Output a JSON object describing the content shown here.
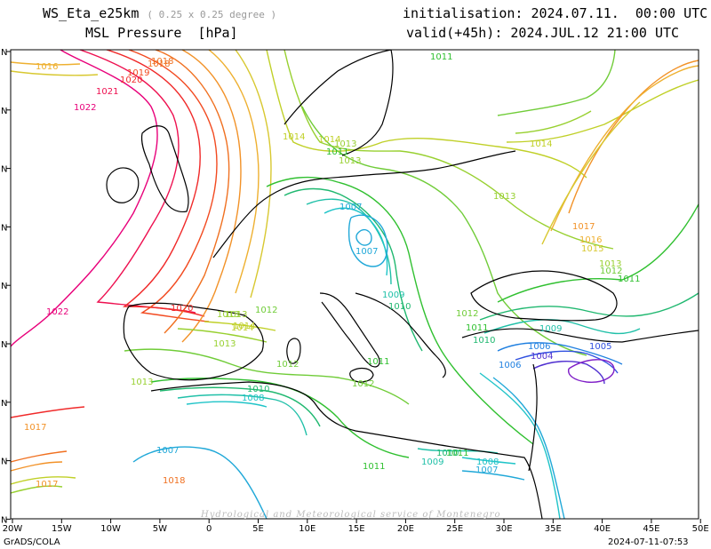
{
  "header": {
    "model": "WS_Eta_e25km",
    "resolution": "( 0.25 x 0.25 degree )",
    "field": "MSL Pressure",
    "unit": "[hPa]",
    "init": "initialisation: 2024.07.11.  00:00 UTC",
    "valid": "valid(+45h): 2024.JUL.12 21:00 UTC"
  },
  "footer": {
    "left": "GrADS/COLA",
    "right": "2024-07-11-07:53",
    "watermark": "Hydrological and Meteorological service of Montenegro"
  },
  "axes": {
    "lon_labels": [
      "20W",
      "15W",
      "10W",
      "5W",
      "0",
      "5E",
      "10E",
      "15E",
      "20E",
      "25E",
      "30E",
      "35E",
      "40E",
      "45E",
      "50E"
    ],
    "lat_labels": [
      "N",
      "N",
      "N",
      "N",
      "N",
      "N",
      "N",
      "N",
      "N"
    ]
  },
  "colors": {
    "1022": "#e8007a",
    "1021": "#ee1050",
    "1020": "#f02a2a",
    "1019": "#f24a20",
    "1018": "#f07020",
    "1017": "#f29228",
    "1016": "#eeb030",
    "1015": "#d8c830",
    "1014": "#c0d028",
    "1013": "#98d030",
    "1012": "#70cc38",
    "1011": "#30c030",
    "1010": "#20b870",
    "1009": "#20c0a8",
    "1008": "#20c4c8",
    "1007": "#20a8d8",
    "1006": "#2080e0",
    "1005": "#3050e0",
    "1004": "#5030d0",
    "1003": "#8020c8"
  },
  "contour_labels": [
    {
      "text": "1016",
      "v": 1016
    },
    {
      "text": "1018",
      "v": 1018
    },
    {
      "text": "1019",
      "v": 1019
    },
    {
      "text": "1020",
      "v": 1020
    },
    {
      "text": "1021",
      "v": 1021
    },
    {
      "text": "1022",
      "v": 1022
    },
    {
      "text": "1022",
      "v": 1022
    },
    {
      "text": "1020",
      "v": 1020
    },
    {
      "text": "1018",
      "v": 1018
    },
    {
      "text": "1017",
      "v": 1017
    },
    {
      "text": "1014",
      "v": 1014
    },
    {
      "text": "1013",
      "v": 1013
    },
    {
      "text": "1011",
      "v": 1011
    },
    {
      "text": "1013",
      "v": 1013
    },
    {
      "text": "1014",
      "v": 1014
    },
    {
      "text": "1007",
      "v": 1007
    },
    {
      "text": "1007",
      "v": 1007
    },
    {
      "text": "1009",
      "v": 1009
    },
    {
      "text": "1010",
      "v": 1010
    },
    {
      "text": "1012",
      "v": 1012
    },
    {
      "text": "1013",
      "v": 1013
    },
    {
      "text": "1014",
      "v": 1014
    },
    {
      "text": "1013",
      "v": 1013
    },
    {
      "text": "1012",
      "v": 1012
    },
    {
      "text": "1011",
      "v": 1011
    },
    {
      "text": "1010",
      "v": 1010
    },
    {
      "text": "1008",
      "v": 1008
    },
    {
      "text": "1007",
      "v": 1007
    },
    {
      "text": "1011",
      "v": 1011
    },
    {
      "text": "1012",
      "v": 1012
    },
    {
      "text": "1011",
      "v": 1011
    },
    {
      "text": "1013",
      "v": 1013
    },
    {
      "text": "1014",
      "v": 1014
    },
    {
      "text": "1013",
      "v": 1013
    },
    {
      "text": "1012",
      "v": 1012
    },
    {
      "text": "1017",
      "v": 1017
    },
    {
      "text": "1016",
      "v": 1016
    },
    {
      "text": "1015",
      "v": 1015
    },
    {
      "text": "1013",
      "v": 1013
    },
    {
      "text": "1012",
      "v": 1012
    },
    {
      "text": "1011",
      "v": 1011
    },
    {
      "text": "1009",
      "v": 1009
    },
    {
      "text": "1006",
      "v": 1006
    },
    {
      "text": "1005",
      "v": 1005
    },
    {
      "text": "1004",
      "v": 1004
    },
    {
      "text": "1006",
      "v": 1006
    },
    {
      "text": "1010",
      "v": 1010
    },
    {
      "text": "1009",
      "v": 1009
    },
    {
      "text": "1008",
      "v": 1008
    },
    {
      "text": "1007",
      "v": 1007
    },
    {
      "text": "1011",
      "v": 1011
    },
    {
      "text": "1010",
      "v": 1010
    },
    {
      "text": "1013",
      "v": 1013
    },
    {
      "text": "1011",
      "v": 1011
    },
    {
      "text": "1014",
      "v": 1014
    },
    {
      "text": "1017",
      "v": 1017
    },
    {
      "text": "1018",
      "v": 1018
    }
  ]
}
